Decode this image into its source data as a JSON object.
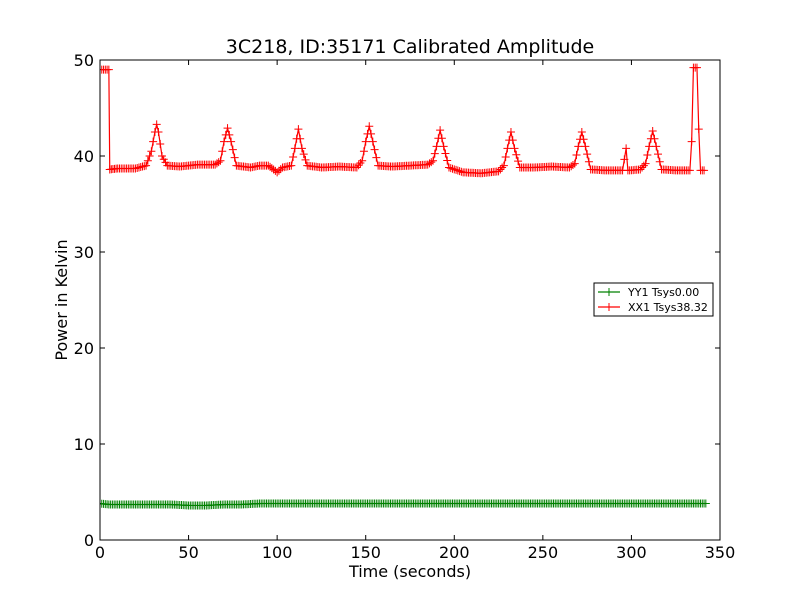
{
  "chart_data": {
    "type": "line",
    "title": "3C218, ID:35171 Calibrated Amplitude",
    "xlabel": "Time (seconds)",
    "ylabel": "Power in Kelvin",
    "xlim": [
      0,
      350
    ],
    "ylim": [
      0,
      50
    ],
    "xticks": [
      "0",
      "50",
      "100",
      "150",
      "200",
      "250",
      "300",
      "350"
    ],
    "yticks": [
      "0",
      "10",
      "20",
      "30",
      "40",
      "50"
    ],
    "grid": false,
    "legend_position": "center-right",
    "marker": "plus",
    "series": [
      {
        "name": "YY1 Tsys0.00",
        "color": "#008000",
        "x": [
          0,
          5,
          10,
          20,
          30,
          40,
          50,
          60,
          70,
          80,
          90,
          100,
          120,
          140,
          160,
          180,
          200,
          220,
          240,
          260,
          280,
          300,
          320,
          335,
          340,
          342
        ],
        "y": [
          3.8,
          3.7,
          3.7,
          3.7,
          3.7,
          3.7,
          3.6,
          3.6,
          3.7,
          3.7,
          3.8,
          3.8,
          3.8,
          3.8,
          3.8,
          3.8,
          3.8,
          3.8,
          3.8,
          3.8,
          3.8,
          3.8,
          3.8,
          3.8,
          3.8,
          3.8
        ]
      },
      {
        "name": "XX1 Tsys38.32",
        "color": "#ff0000",
        "x": [
          1,
          3,
          5,
          5.5,
          10,
          20,
          26,
          29,
          31,
          32,
          33,
          35,
          38,
          45,
          55,
          65,
          68,
          70,
          72,
          74,
          77,
          85,
          90,
          95,
          98,
          100,
          103,
          108,
          110,
          112,
          114,
          117,
          125,
          135,
          145,
          148,
          150,
          152,
          154,
          157,
          165,
          175,
          185,
          188,
          190,
          192,
          194,
          197,
          205,
          215,
          225,
          228,
          230,
          232,
          234,
          237,
          245,
          255,
          265,
          268,
          270,
          272,
          274,
          277,
          285,
          295,
          297,
          298,
          299,
          305,
          308,
          310,
          312,
          314,
          317,
          325,
          333,
          334,
          335,
          336,
          337,
          338,
          339,
          340,
          341
        ],
        "y": [
          49.0,
          49.0,
          49.0,
          38.6,
          38.7,
          38.7,
          39.0,
          40.5,
          42.5,
          43.3,
          42.5,
          40.0,
          39.0,
          38.9,
          39.1,
          39.1,
          39.5,
          41.5,
          42.9,
          41.5,
          39.0,
          38.8,
          39.0,
          39.0,
          38.6,
          38.3,
          38.8,
          39.0,
          40.8,
          42.8,
          40.8,
          39.0,
          38.8,
          38.9,
          38.8,
          39.5,
          41.5,
          43.1,
          41.5,
          39.0,
          38.9,
          39.0,
          39.1,
          39.5,
          41.0,
          42.7,
          41.0,
          38.8,
          38.3,
          38.2,
          38.4,
          39.0,
          40.8,
          42.5,
          40.8,
          38.8,
          38.8,
          38.9,
          38.8,
          39.2,
          41.0,
          42.5,
          41.0,
          38.6,
          38.5,
          38.5,
          40.8,
          38.5,
          38.5,
          38.6,
          39.2,
          41.0,
          42.6,
          41.0,
          38.6,
          38.5,
          38.5,
          41.5,
          49.2,
          49.2,
          49.2,
          42.8,
          38.5,
          38.5,
          38.5
        ]
      }
    ]
  }
}
